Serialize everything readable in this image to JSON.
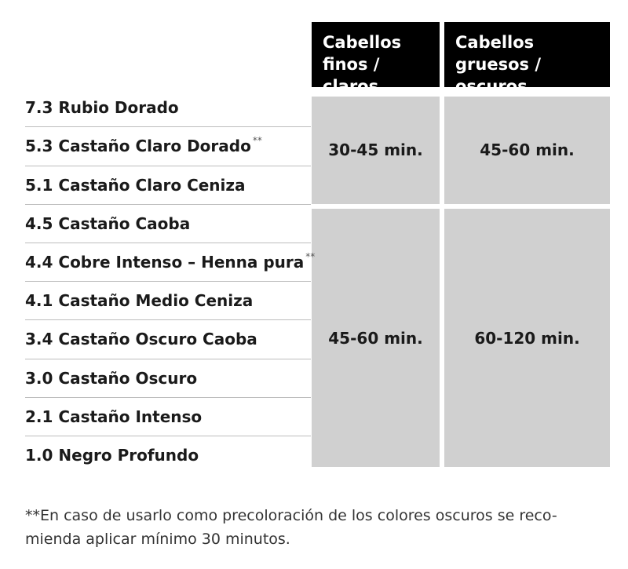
{
  "header": {
    "fine": "Cabellos\nfinos / claros",
    "thick": "Cabellos\ngruesos / oscuros"
  },
  "colors": [
    {
      "name": "7.3 Rubio Dorado",
      "mark": ""
    },
    {
      "name": "5.3 Castaño Claro Dorado",
      "mark": "**"
    },
    {
      "name": "5.1 Castaño Claro Ceniza",
      "mark": ""
    },
    {
      "name": "4.5 Castaño Caoba",
      "mark": ""
    },
    {
      "name": "4.4 Cobre Intenso – Henna pura",
      "mark": "**"
    },
    {
      "name": "4.1 Castaño Medio Ceniza",
      "mark": ""
    },
    {
      "name": "3.4 Castaño Oscuro Caoba",
      "mark": ""
    },
    {
      "name": "3.0 Castaño Oscuro",
      "mark": ""
    },
    {
      "name": "2.1 Castaño Intenso",
      "mark": ""
    },
    {
      "name": "1.0 Negro Profundo",
      "mark": ""
    }
  ],
  "groups": [
    {
      "fine": "30-45 min.",
      "thick": "45-60 min."
    },
    {
      "fine": "45-60 min.",
      "thick": "60-120 min."
    }
  ],
  "footnote": "**En caso de usarlo como precoloración de los colores oscuros se reco-\nmienda aplicar mínimo 30 minutos."
}
